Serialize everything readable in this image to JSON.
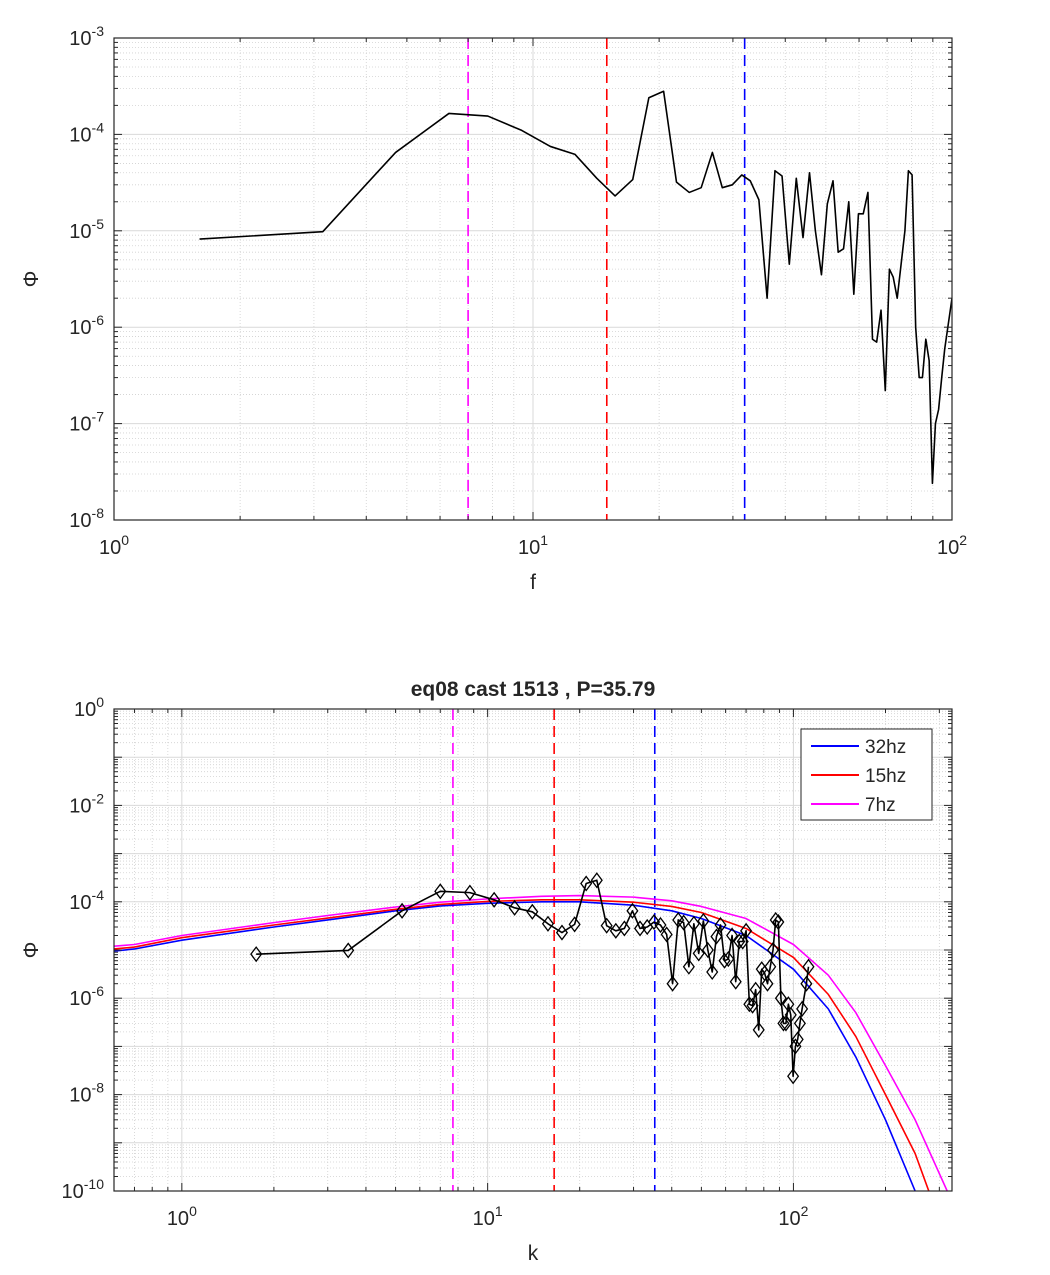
{
  "chart_data": [
    {
      "type": "line",
      "title": "",
      "xlabel": "f",
      "ylabel": "Φ",
      "xscale": "log",
      "yscale": "log",
      "xlim": [
        1,
        100
      ],
      "ylim": [
        1e-08,
        0.001
      ],
      "grid": true,
      "x_ticks": [
        1,
        10,
        100
      ],
      "y_ticks": [
        1e-08,
        1e-07,
        1e-06,
        1e-05,
        0.0001,
        0.001
      ],
      "series": [
        {
          "color": "#000000",
          "marker": "none",
          "points": [
            [
              1.6,
              8.2e-06
            ],
            [
              3.15,
              9.8e-06
            ],
            [
              4.7,
              6.5e-05
            ],
            [
              6.3,
              0.000165
            ],
            [
              7.8,
              0.000155
            ],
            [
              9.4,
              0.00011
            ],
            [
              11.0,
              7.5e-05
            ],
            [
              12.6,
              6.2e-05
            ],
            [
              14.2,
              3.5e-05
            ],
            [
              15.7,
              2.3e-05
            ],
            [
              17.3,
              3.4e-05
            ],
            [
              18.9,
              0.00024
            ],
            [
              20.5,
              0.00028
            ],
            [
              22.0,
              3.2e-05
            ],
            [
              23.6,
              2.5e-05
            ],
            [
              25.2,
              2.8e-05
            ],
            [
              26.8,
              6.5e-05
            ],
            [
              28.3,
              2.8e-05
            ],
            [
              29.9,
              3e-05
            ],
            [
              31.5,
              3.8e-05
            ],
            [
              33.0,
              3.3e-05
            ],
            [
              34.6,
              2.1e-05
            ],
            [
              36.2,
              2e-06
            ],
            [
              37.8,
              4.2e-05
            ],
            [
              39.3,
              3.7e-05
            ],
            [
              40.9,
              4.5e-06
            ],
            [
              42.5,
              3.5e-05
            ],
            [
              44.1,
              8.5e-06
            ],
            [
              45.7,
              4e-05
            ],
            [
              47.2,
              1e-05
            ],
            [
              48.8,
              3.5e-06
            ],
            [
              50.4,
              1.9e-05
            ],
            [
              52.0,
              3.3e-05
            ],
            [
              53.5,
              6e-06
            ],
            [
              55.1,
              6.5e-06
            ],
            [
              56.7,
              2e-05
            ],
            [
              58.3,
              2.2e-06
            ],
            [
              59.8,
              1.5e-05
            ],
            [
              61.4,
              1.5e-05
            ],
            [
              63.0,
              2.5e-05
            ],
            [
              64.6,
              7.5e-07
            ],
            [
              66.1,
              7e-07
            ],
            [
              67.7,
              1.5e-06
            ],
            [
              69.3,
              2.2e-07
            ],
            [
              70.9,
              4e-06
            ],
            [
              72.4,
              3.3e-06
            ],
            [
              74.0,
              2e-06
            ],
            [
              75.6,
              4.5e-06
            ],
            [
              77.2,
              1e-05
            ],
            [
              78.7,
              4.2e-05
            ],
            [
              80.3,
              3.8e-05
            ],
            [
              81.9,
              1e-06
            ],
            [
              83.5,
              3e-07
            ],
            [
              85.0,
              3e-07
            ],
            [
              86.6,
              7.5e-07
            ],
            [
              88.2,
              4.5e-07
            ],
            [
              89.8,
              2.4e-08
            ],
            [
              91.3,
              1e-07
            ],
            [
              92.9,
              1.4e-07
            ],
            [
              94.5,
              3e-07
            ],
            [
              96.1,
              6e-07
            ],
            [
              100.0,
              2e-06
            ]
          ]
        }
      ],
      "vlines": [
        {
          "x": 7.0,
          "color": "#ff00ff",
          "style": "dashed"
        },
        {
          "x": 15.0,
          "color": "#ff0000",
          "style": "dashed"
        },
        {
          "x": 32.0,
          "color": "#0000ff",
          "style": "dashed"
        }
      ]
    },
    {
      "type": "line",
      "title": "eq08 cast 1513 , P=35.79",
      "xlabel": "k",
      "ylabel": "Φ",
      "xscale": "log",
      "yscale": "log",
      "xlim": [
        0.6,
        330
      ],
      "ylim": [
        1e-10,
        1
      ],
      "grid": true,
      "x_ticks": [
        1,
        10,
        100
      ],
      "y_ticks": [
        1e-10,
        1e-08,
        1e-06,
        0.0001,
        0.01,
        1
      ],
      "legend": {
        "position": "top-right",
        "entries": [
          "32hz",
          "15hz",
          "7hz"
        ]
      },
      "series": [
        {
          "name": "32hz",
          "color": "#0000ff",
          "marker": "none",
          "points": [
            [
              0.6,
              9.5e-06
            ],
            [
              0.7,
              1.05e-05
            ],
            [
              1.0,
              1.6e-05
            ],
            [
              2.0,
              3e-05
            ],
            [
              3.0,
              4.2e-05
            ],
            [
              5.0,
              6.5e-05
            ],
            [
              7.0,
              8.2e-05
            ],
            [
              10.0,
              9.3e-05
            ],
            [
              15.0,
              0.0001
            ],
            [
              20.0,
              0.0001
            ],
            [
              30.0,
              8.5e-05
            ],
            [
              40.0,
              6.5e-05
            ],
            [
              50.0,
              4.5e-05
            ],
            [
              70.0,
              2e-05
            ],
            [
              100.0,
              4e-06
            ],
            [
              130.0,
              6e-07
            ],
            [
              160.0,
              6e-08
            ],
            [
              200.0,
              3e-09
            ],
            [
              250.0,
              1e-10
            ],
            [
              270.0,
              2e-11
            ]
          ]
        },
        {
          "name": "15hz",
          "color": "#ff0000",
          "marker": "none",
          "points": [
            [
              0.6,
              1.05e-05
            ],
            [
              0.7,
              1.15e-05
            ],
            [
              1.0,
              1.8e-05
            ],
            [
              2.0,
              3.3e-05
            ],
            [
              3.0,
              4.6e-05
            ],
            [
              5.0,
              7e-05
            ],
            [
              7.0,
              8.8e-05
            ],
            [
              10.0,
              0.000102
            ],
            [
              15.0,
              0.00011
            ],
            [
              20.0,
              0.00011
            ],
            [
              30.0,
              9.8e-05
            ],
            [
              40.0,
              8e-05
            ],
            [
              50.0,
              6e-05
            ],
            [
              70.0,
              2.8e-05
            ],
            [
              100.0,
              7e-06
            ],
            [
              130.0,
              1.2e-06
            ],
            [
              160.0,
              1.6e-07
            ],
            [
              200.0,
              1e-08
            ],
            [
              250.0,
              6e-10
            ],
            [
              300.0,
              2.5e-11
            ]
          ]
        },
        {
          "name": "7hz",
          "color": "#ff00ff",
          "marker": "none",
          "points": [
            [
              0.6,
              1.2e-05
            ],
            [
              0.7,
              1.3e-05
            ],
            [
              1.0,
              2e-05
            ],
            [
              2.0,
              3.7e-05
            ],
            [
              3.0,
              5.2e-05
            ],
            [
              5.0,
              7.8e-05
            ],
            [
              7.0,
              9.8e-05
            ],
            [
              10.0,
              0.000115
            ],
            [
              15.0,
              0.00013
            ],
            [
              20.0,
              0.000135
            ],
            [
              30.0,
              0.000125
            ],
            [
              40.0,
              0.000105
            ],
            [
              50.0,
              8e-05
            ],
            [
              70.0,
              4.5e-05
            ],
            [
              100.0,
              1.3e-05
            ],
            [
              130.0,
              3e-06
            ],
            [
              160.0,
              5e-07
            ],
            [
              200.0,
              4e-08
            ],
            [
              250.0,
              3e-09
            ],
            [
              330.0,
              6e-11
            ]
          ]
        },
        {
          "color": "#000000",
          "marker": "diamond",
          "points": [
            [
              1.75,
              8.2e-06
            ],
            [
              3.5,
              9.8e-06
            ],
            [
              5.25,
              6.5e-05
            ],
            [
              7.0,
              0.000165
            ],
            [
              8.75,
              0.000155
            ],
            [
              10.5,
              0.00011
            ],
            [
              12.25,
              7.5e-05
            ],
            [
              14.0,
              6.2e-05
            ],
            [
              15.75,
              3.5e-05
            ],
            [
              17.5,
              2.3e-05
            ],
            [
              19.25,
              3.4e-05
            ],
            [
              21.0,
              0.00024
            ],
            [
              22.75,
              0.00028
            ],
            [
              24.5,
              3.2e-05
            ],
            [
              26.25,
              2.5e-05
            ],
            [
              28.0,
              2.8e-05
            ],
            [
              29.75,
              6.5e-05
            ],
            [
              31.5,
              2.8e-05
            ],
            [
              33.25,
              3e-05
            ],
            [
              35.0,
              3.8e-05
            ],
            [
              36.75,
              3.3e-05
            ],
            [
              38.5,
              2.1e-05
            ],
            [
              40.25,
              2e-06
            ],
            [
              42.0,
              4.2e-05
            ],
            [
              43.75,
              3.7e-05
            ],
            [
              45.5,
              4.5e-06
            ],
            [
              47.25,
              3.5e-05
            ],
            [
              49.0,
              8.5e-06
            ],
            [
              50.75,
              4e-05
            ],
            [
              52.5,
              1e-05
            ],
            [
              54.25,
              3.5e-06
            ],
            [
              56.0,
              1.9e-05
            ],
            [
              57.75,
              3.3e-05
            ],
            [
              59.5,
              6e-06
            ],
            [
              61.25,
              6.5e-06
            ],
            [
              63.0,
              2e-05
            ],
            [
              64.75,
              2.2e-06
            ],
            [
              66.5,
              1.5e-05
            ],
            [
              68.25,
              1.5e-05
            ],
            [
              70.0,
              2.5e-05
            ],
            [
              71.75,
              7.5e-07
            ],
            [
              73.5,
              7e-07
            ],
            [
              75.25,
              1.5e-06
            ],
            [
              77.0,
              2.2e-07
            ],
            [
              78.75,
              4e-06
            ],
            [
              80.5,
              3.3e-06
            ],
            [
              82.25,
              2e-06
            ],
            [
              84.0,
              4.5e-06
            ],
            [
              85.75,
              1e-05
            ],
            [
              87.5,
              4.2e-05
            ],
            [
              89.25,
              3.8e-05
            ],
            [
              91.0,
              1e-06
            ],
            [
              92.75,
              3e-07
            ],
            [
              94.5,
              3e-07
            ],
            [
              96.25,
              7.5e-07
            ],
            [
              98.0,
              4.5e-07
            ],
            [
              99.75,
              2.4e-08
            ],
            [
              101.5,
              1e-07
            ],
            [
              103.25,
              1.4e-07
            ],
            [
              105.0,
              3e-07
            ],
            [
              106.75,
              6e-07
            ],
            [
              110.25,
              2e-06
            ],
            [
              112.0,
              4.5e-06
            ]
          ]
        }
      ],
      "vlines": [
        {
          "x": 7.7,
          "color": "#ff00ff",
          "style": "dashed"
        },
        {
          "x": 16.5,
          "color": "#ff0000",
          "style": "dashed"
        },
        {
          "x": 35.2,
          "color": "#0000ff",
          "style": "dashed"
        }
      ]
    }
  ]
}
